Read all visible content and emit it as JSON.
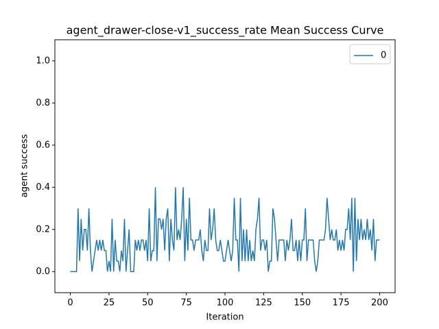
{
  "chart_data": {
    "type": "line",
    "title": "agent_drawer-close-v1_success_rate Mean Success Curve",
    "x_label": "Iteration",
    "y_label": "agent success",
    "legend_position": "upper right",
    "xlim": [
      -10,
      210
    ],
    "xticks": [
      0,
      25,
      50,
      75,
      100,
      125,
      150,
      175,
      200
    ],
    "ylim": [
      -0.1,
      1.1
    ],
    "yticks": [
      {
        "value": 0,
        "label": "0.0"
      },
      {
        "value": 0.2,
        "label": "0.2"
      },
      {
        "value": 0.4,
        "label": "0.4"
      },
      {
        "value": 0.6,
        "label": "0.6"
      },
      {
        "value": 0.8,
        "label": "0.8"
      },
      {
        "value": 1.0,
        "label": "1.0"
      }
    ],
    "x": [
      0,
      1,
      2,
      3,
      4,
      5,
      6,
      7,
      8,
      9,
      10,
      11,
      12,
      13,
      14,
      15,
      16,
      17,
      18,
      19,
      20,
      21,
      22,
      23,
      24,
      25,
      26,
      27,
      28,
      29,
      30,
      31,
      32,
      33,
      34,
      35,
      36,
      37,
      38,
      39,
      40,
      41,
      42,
      43,
      44,
      45,
      46,
      47,
      48,
      49,
      50,
      51,
      52,
      53,
      54,
      55,
      56,
      57,
      58,
      59,
      60,
      61,
      62,
      63,
      64,
      65,
      66,
      67,
      68,
      69,
      70,
      71,
      72,
      73,
      74,
      75,
      76,
      77,
      78,
      79,
      80,
      81,
      82,
      83,
      84,
      85,
      86,
      87,
      88,
      89,
      90,
      91,
      92,
      93,
      94,
      95,
      96,
      97,
      98,
      99,
      100,
      101,
      102,
      103,
      104,
      105,
      106,
      107,
      108,
      109,
      110,
      111,
      112,
      113,
      114,
      115,
      116,
      117,
      118,
      119,
      120,
      121,
      122,
      123,
      124,
      125,
      126,
      127,
      128,
      129,
      130,
      131,
      132,
      133,
      134,
      135,
      136,
      137,
      138,
      139,
      140,
      141,
      142,
      143,
      144,
      145,
      146,
      147,
      148,
      149,
      150,
      151,
      152,
      153,
      154,
      155,
      156,
      157,
      158,
      159,
      160,
      161,
      162,
      163,
      164,
      165,
      166,
      167,
      168,
      169,
      170,
      171,
      172,
      173,
      174,
      175,
      176,
      177,
      178,
      179,
      180,
      181,
      182,
      183,
      184,
      185,
      186,
      187,
      188,
      189,
      190,
      191,
      192,
      193,
      194,
      195,
      196,
      197,
      198,
      199,
      200
    ],
    "series": [
      {
        "name": "0",
        "color": "#1f77b4",
        "values": [
          0,
          0,
          0,
          0,
          0,
          0.3,
          0.05,
          0.25,
          0.1,
          0.2,
          0.2,
          0.1,
          0.3,
          0.1,
          0,
          0.05,
          0.1,
          0.15,
          0.1,
          0.15,
          0.1,
          0.15,
          0.1,
          0.1,
          0,
          0.05,
          0,
          0.25,
          0,
          0.15,
          0.05,
          0.05,
          0,
          0.1,
          0.05,
          0.25,
          0,
          0.1,
          0.2,
          0,
          0,
          0,
          0.15,
          0.1,
          0.15,
          0.1,
          0.15,
          0.15,
          0.1,
          0.15,
          0.05,
          0.3,
          0.05,
          0.1,
          0.1,
          0.4,
          0.05,
          0.25,
          0.25,
          0.2,
          0.25,
          0.1,
          0.25,
          0.3,
          0.05,
          0.25,
          0.15,
          0.1,
          0.4,
          0.15,
          0.2,
          0.15,
          0.25,
          0.4,
          0.05,
          0.25,
          0.1,
          0.35,
          0.15,
          0.15,
          0.1,
          0.15,
          0.15,
          0.15,
          0.2,
          0.1,
          0.05,
          0.15,
          0.1,
          0.1,
          0.3,
          0.15,
          0.2,
          0.3,
          0.15,
          0.1,
          0.1,
          0.15,
          0.1,
          0.05,
          0.05,
          0.1,
          0.15,
          0.1,
          0.05,
          0.1,
          0.35,
          0.15,
          0.15,
          0,
          0.35,
          0.05,
          0.2,
          0.05,
          0.2,
          0.05,
          0.15,
          0.05,
          0.1,
          0.05,
          0.2,
          0.25,
          0.35,
          0.1,
          0.15,
          0.15,
          0.1,
          0.15,
          0,
          0.05,
          0.05,
          0.3,
          0.25,
          0.15,
          0.05,
          0.15,
          0.15,
          0.15,
          0.15,
          0.05,
          0.15,
          0.1,
          0.15,
          0.25,
          0.1,
          0.1,
          0.15,
          0.05,
          0.15,
          0.05,
          0.15,
          0.15,
          0.3,
          0.05,
          0.15,
          0.15,
          0.15,
          0.15,
          0.05,
          0,
          0.05,
          0.15,
          0.15,
          0.15,
          0.15,
          0.2,
          0.35,
          0.25,
          0.15,
          0.2,
          0.15,
          0.15,
          0.2,
          0.1,
          0.15,
          0.1,
          0.15,
          0.1,
          0.2,
          0.2,
          0.3,
          0.15,
          0.35,
          0,
          0.35,
          0.05,
          0.25,
          0.15,
          0.25,
          0.15,
          0.2,
          0.15,
          0.25,
          0.15,
          0.2,
          0.1,
          0.25,
          0.05,
          0.15,
          0.15,
          0.15
        ]
      }
    ]
  }
}
